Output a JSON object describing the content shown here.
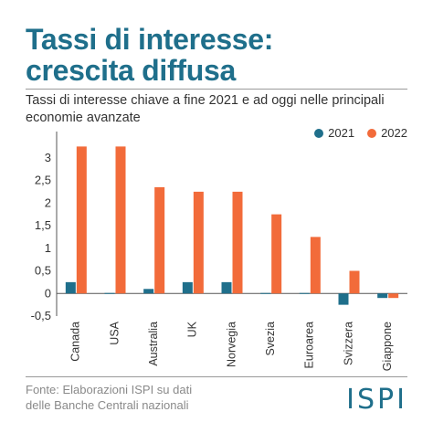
{
  "header": {
    "title_line1": "Tassi di interesse:",
    "title_line2": "crescita diffusa",
    "subtitle": "Tassi di interesse chiave a fine 2021 e ad oggi nelle principali economie avanzate"
  },
  "footer": {
    "source_line1": "Fonte: Elaborazioni ISPI su dati",
    "source_line2": "delle Banche Centrali nazionali",
    "logo": "ISPI"
  },
  "colors": {
    "series_2021": "#1f6f8b",
    "series_2022": "#f26b3a",
    "title": "#1f6f8b"
  },
  "chart_data": {
    "type": "bar",
    "categories": [
      "Canada",
      "USA",
      "Australia",
      "UK",
      "Norvegia",
      "Svezia",
      "Euroarea",
      "Svizzera",
      "Giappone"
    ],
    "series": [
      {
        "name": "2021",
        "values": [
          0.25,
          0.0,
          0.1,
          0.25,
          0.25,
          0.0,
          0.0,
          -0.25,
          -0.1
        ]
      },
      {
        "name": "2022",
        "values": [
          3.25,
          3.25,
          2.35,
          2.25,
          2.25,
          1.75,
          1.25,
          0.5,
          -0.1
        ]
      }
    ],
    "yticks": [
      "-0,5",
      "0",
      "0,5",
      "1",
      "1,5",
      "2",
      "2,5",
      "3"
    ],
    "ylim": [
      -0.5,
      3.5
    ],
    "legend_position": "top-right",
    "grid": false
  }
}
